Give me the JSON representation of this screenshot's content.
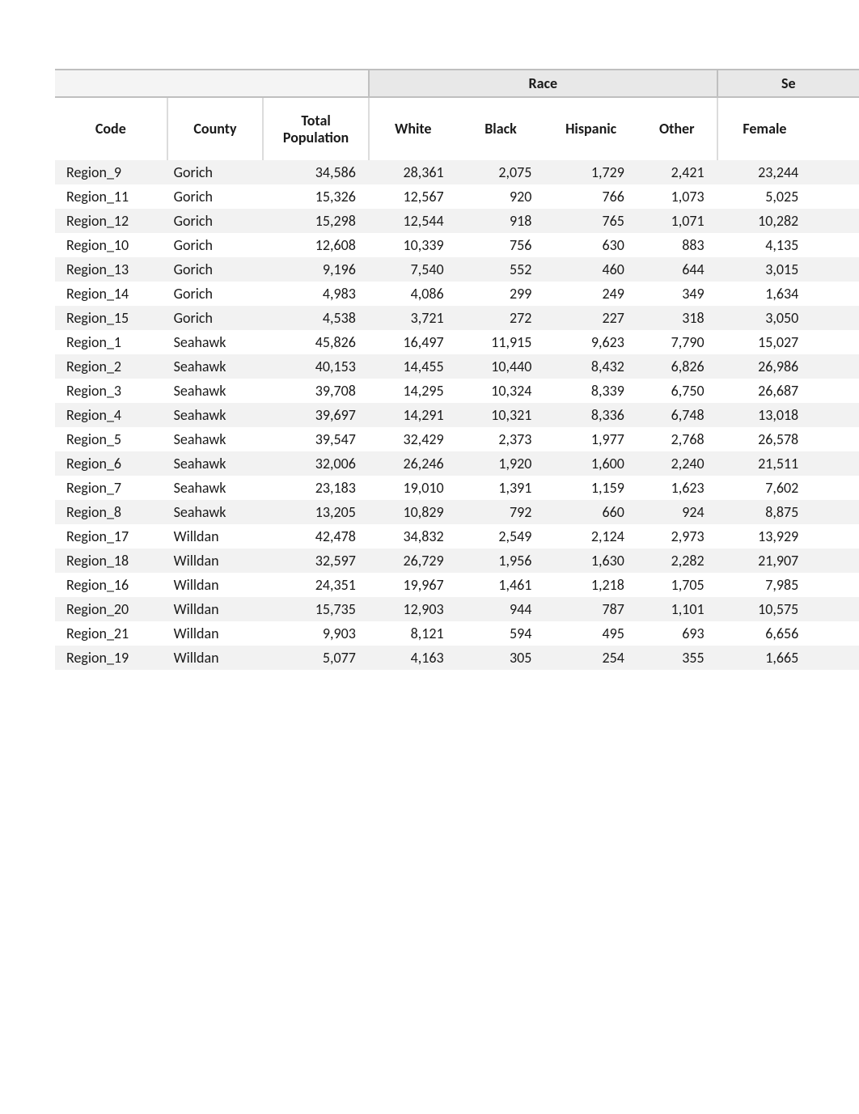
{
  "group_headers": {
    "race": "Race",
    "se": "Se"
  },
  "columns": {
    "code": "Code",
    "county": "County",
    "total_population_l1": "Total",
    "total_population_l2": "Population",
    "white": "White",
    "black": "Black",
    "hispanic": "Hispanic",
    "other": "Other",
    "female": "Female"
  },
  "colors": {
    "page_bg": "#ffffff",
    "row_even_bg": "#f2f2f2",
    "row_odd_bg": "#ffffff",
    "group_header_bg": "#e8e8e8",
    "group_header_blank_bg": "#f4f4f4",
    "header_border": "#bfbfbf",
    "vsep": "#dcdcdc",
    "text": "#1a1a1a"
  },
  "rows": [
    {
      "code": "Region_9",
      "county": "Gorich",
      "pop": "34,586",
      "white": "28,361",
      "black": "2,075",
      "hisp": "1,729",
      "other": "2,421",
      "female": "23,244"
    },
    {
      "code": "Region_11",
      "county": "Gorich",
      "pop": "15,326",
      "white": "12,567",
      "black": "920",
      "hisp": "766",
      "other": "1,073",
      "female": "5,025"
    },
    {
      "code": "Region_12",
      "county": "Gorich",
      "pop": "15,298",
      "white": "12,544",
      "black": "918",
      "hisp": "765",
      "other": "1,071",
      "female": "10,282"
    },
    {
      "code": "Region_10",
      "county": "Gorich",
      "pop": "12,608",
      "white": "10,339",
      "black": "756",
      "hisp": "630",
      "other": "883",
      "female": "4,135"
    },
    {
      "code": "Region_13",
      "county": "Gorich",
      "pop": "9,196",
      "white": "7,540",
      "black": "552",
      "hisp": "460",
      "other": "644",
      "female": "3,015"
    },
    {
      "code": "Region_14",
      "county": "Gorich",
      "pop": "4,983",
      "white": "4,086",
      "black": "299",
      "hisp": "249",
      "other": "349",
      "female": "1,634"
    },
    {
      "code": "Region_15",
      "county": "Gorich",
      "pop": "4,538",
      "white": "3,721",
      "black": "272",
      "hisp": "227",
      "other": "318",
      "female": "3,050"
    },
    {
      "code": "Region_1",
      "county": "Seahawk",
      "pop": "45,826",
      "white": "16,497",
      "black": "11,915",
      "hisp": "9,623",
      "other": "7,790",
      "female": "15,027"
    },
    {
      "code": "Region_2",
      "county": "Seahawk",
      "pop": "40,153",
      "white": "14,455",
      "black": "10,440",
      "hisp": "8,432",
      "other": "6,826",
      "female": "26,986"
    },
    {
      "code": "Region_3",
      "county": "Seahawk",
      "pop": "39,708",
      "white": "14,295",
      "black": "10,324",
      "hisp": "8,339",
      "other": "6,750",
      "female": "26,687"
    },
    {
      "code": "Region_4",
      "county": "Seahawk",
      "pop": "39,697",
      "white": "14,291",
      "black": "10,321",
      "hisp": "8,336",
      "other": "6,748",
      "female": "13,018"
    },
    {
      "code": "Region_5",
      "county": "Seahawk",
      "pop": "39,547",
      "white": "32,429",
      "black": "2,373",
      "hisp": "1,977",
      "other": "2,768",
      "female": "26,578"
    },
    {
      "code": "Region_6",
      "county": "Seahawk",
      "pop": "32,006",
      "white": "26,246",
      "black": "1,920",
      "hisp": "1,600",
      "other": "2,240",
      "female": "21,511"
    },
    {
      "code": "Region_7",
      "county": "Seahawk",
      "pop": "23,183",
      "white": "19,010",
      "black": "1,391",
      "hisp": "1,159",
      "other": "1,623",
      "female": "7,602"
    },
    {
      "code": "Region_8",
      "county": "Seahawk",
      "pop": "13,205",
      "white": "10,829",
      "black": "792",
      "hisp": "660",
      "other": "924",
      "female": "8,875"
    },
    {
      "code": "Region_17",
      "county": "Willdan",
      "pop": "42,478",
      "white": "34,832",
      "black": "2,549",
      "hisp": "2,124",
      "other": "2,973",
      "female": "13,929"
    },
    {
      "code": "Region_18",
      "county": "Willdan",
      "pop": "32,597",
      "white": "26,729",
      "black": "1,956",
      "hisp": "1,630",
      "other": "2,282",
      "female": "21,907"
    },
    {
      "code": "Region_16",
      "county": "Willdan",
      "pop": "24,351",
      "white": "19,967",
      "black": "1,461",
      "hisp": "1,218",
      "other": "1,705",
      "female": "7,985"
    },
    {
      "code": "Region_20",
      "county": "Willdan",
      "pop": "15,735",
      "white": "12,903",
      "black": "944",
      "hisp": "787",
      "other": "1,101",
      "female": "10,575"
    },
    {
      "code": "Region_21",
      "county": "Willdan",
      "pop": "9,903",
      "white": "8,121",
      "black": "594",
      "hisp": "495",
      "other": "693",
      "female": "6,656"
    },
    {
      "code": "Region_19",
      "county": "Willdan",
      "pop": "5,077",
      "white": "4,163",
      "black": "305",
      "hisp": "254",
      "other": "355",
      "female": "1,665"
    }
  ]
}
